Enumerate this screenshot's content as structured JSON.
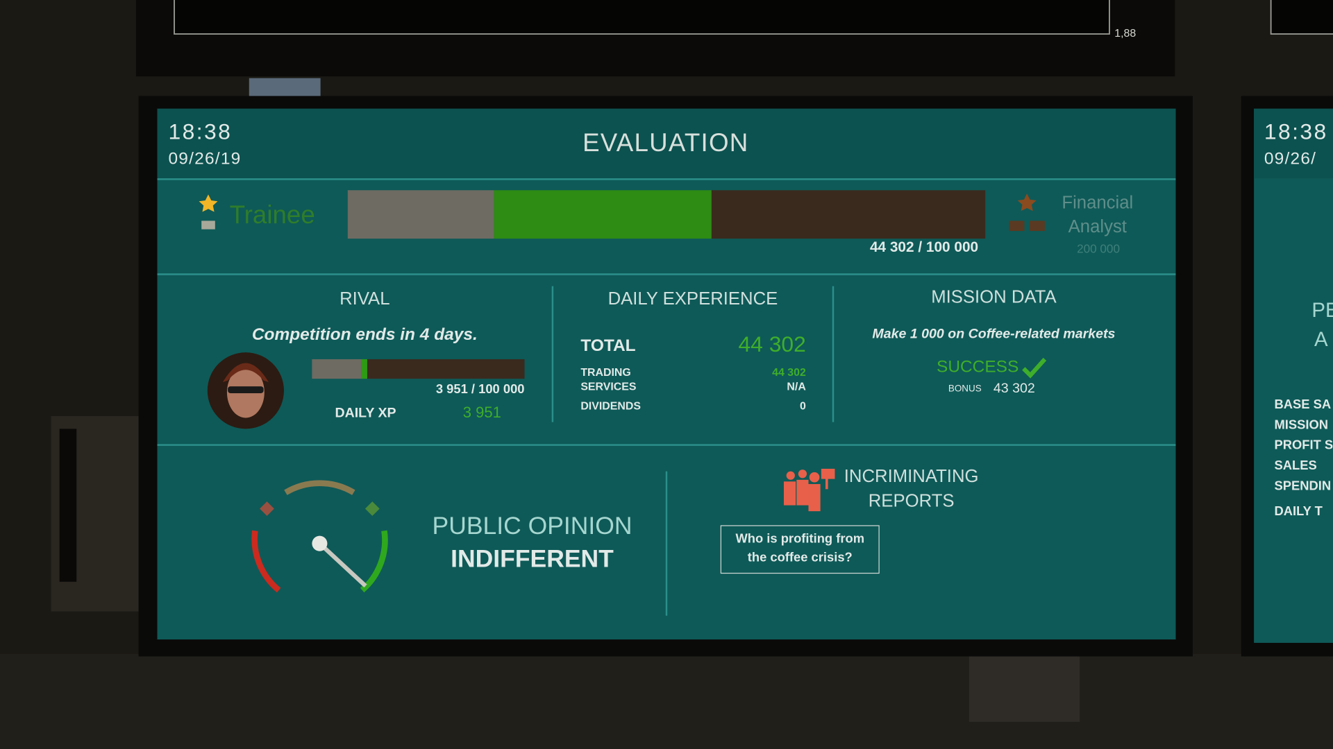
{
  "top_monitor": {
    "value": "1,88"
  },
  "header": {
    "time": "18:38",
    "date": "09/26/19",
    "title": "EVALUATION"
  },
  "rank": {
    "current": "Trainee",
    "next": [
      "Financial",
      "Analyst"
    ],
    "next_requirement": "200 000",
    "progress": "44 302 / 100 000"
  },
  "rival": {
    "title": "RIVAL",
    "subtitle": "Competition ends in 4 days.",
    "progress": "3 951 / 100 000",
    "daily_xp_label": "DAILY XP",
    "daily_xp": "3 951"
  },
  "daily_experience": {
    "title": "DAILY EXPERIENCE",
    "total_label": "TOTAL",
    "total": "44 302",
    "rows": [
      [
        "TRADING",
        "44 302"
      ],
      [
        "SERVICES",
        "N/A"
      ],
      [
        "DIVIDENDS",
        "0"
      ]
    ]
  },
  "mission": {
    "title": "MISSION DATA",
    "description": "Make 1 000 on Coffee-related markets",
    "status": "SUCCESS",
    "bonus_label": "BONUS",
    "bonus": "43 302"
  },
  "public_opinion": {
    "title": "PUBLIC OPINION",
    "state": "INDIFFERENT"
  },
  "incriminating": {
    "title": [
      "INCRIMINATING",
      "REPORTS"
    ],
    "headline": [
      "Who is profiting from",
      "the coffee crisis?"
    ]
  },
  "side_screen": {
    "time": "18:38",
    "date": "09/26/",
    "heading": [
      "PE",
      "A"
    ],
    "items": [
      "BASE SA",
      "MISSION",
      "PROFIT S",
      "SALES",
      "SPENDIN",
      "DAILY T"
    ]
  }
}
